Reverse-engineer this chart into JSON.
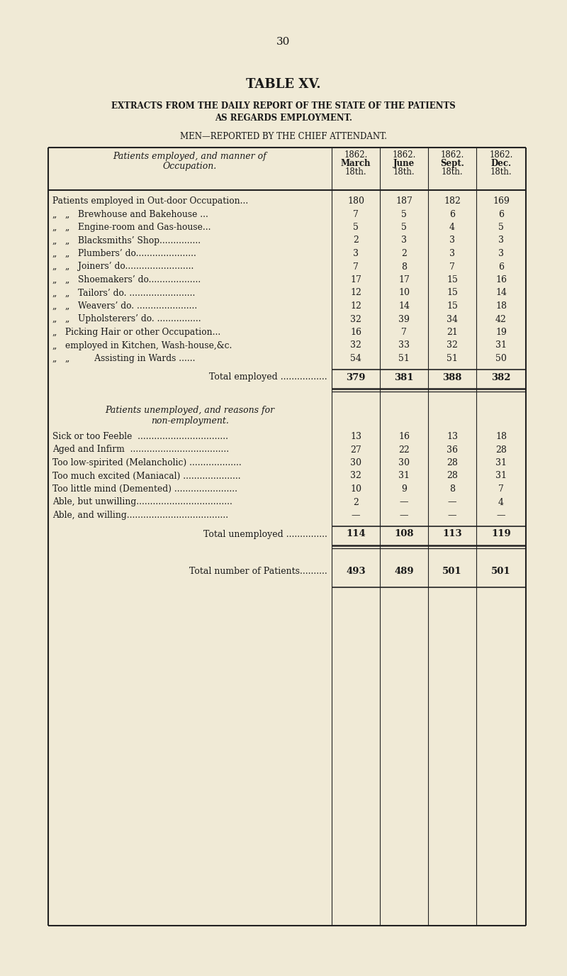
{
  "page_number": "30",
  "title": "TABLE XV.",
  "subtitle1": "EXTRACTS FROM THE DAILY REPORT OF THE STATE OF THE PATIENTS",
  "subtitle2": "AS REGARDS EMPLOYMENT.",
  "subtitle3": "MEN—REPORTED BY THE CHIEF ATTENDANT.",
  "col_headers_line1": [
    "1862.",
    "1862.",
    "1862.",
    "1862."
  ],
  "col_headers_line2": [
    "March",
    "June",
    "Sept.",
    "Dec."
  ],
  "col_headers_line3": [
    "18th.",
    "18th.",
    "18th.",
    "18th."
  ],
  "employed_rows": [
    {
      "label": "Patients employed in Out-door Occupation...",
      "prefix": "",
      "vals": [
        "180",
        "187",
        "182",
        "169"
      ]
    },
    {
      "label": "Brewhouse and Bakehouse ...",
      "prefix": "„   „   ",
      "vals": [
        "7",
        "5",
        "6",
        "6"
      ]
    },
    {
      "label": "Engine-room and Gas-house...",
      "prefix": "„   „   ",
      "vals": [
        "5",
        "5",
        "4",
        "5"
      ]
    },
    {
      "label": "Blacksmiths’ Shop...............",
      "prefix": "„   „   ",
      "vals": [
        "2",
        "3",
        "3",
        "3"
      ]
    },
    {
      "label": "Plumbers’ do......................",
      "prefix": "„   „   ",
      "vals": [
        "3",
        "2",
        "3",
        "3"
      ]
    },
    {
      "label": "Joiners’ do.........................",
      "prefix": "„   „   ",
      "vals": [
        "7",
        "8",
        "7",
        "6"
      ]
    },
    {
      "label": "Shoemakers’ do...................",
      "prefix": "„   „   ",
      "vals": [
        "17",
        "17",
        "15",
        "16"
      ]
    },
    {
      "label": "Tailors’ do. ........................",
      "prefix": "„   „   ",
      "vals": [
        "12",
        "10",
        "15",
        "14"
      ]
    },
    {
      "label": "Weavers’ do. ......................",
      "prefix": "„   „   ",
      "vals": [
        "12",
        "14",
        "15",
        "18"
      ]
    },
    {
      "label": "Upholsterers’ do. ................",
      "prefix": "„   „   ",
      "vals": [
        "32",
        "39",
        "34",
        "42"
      ]
    },
    {
      "label": "Picking Hair or other Occupation...",
      "prefix": "„   ",
      "vals": [
        "16",
        "7",
        "21",
        "19"
      ]
    },
    {
      "label": "employed in Kitchen, Wash-house,&c.",
      "prefix": "„   ",
      "vals": [
        "32",
        "33",
        "32",
        "31"
      ]
    },
    {
      "label": "Assisting in Wards ......",
      "prefix": "„   „         ",
      "vals": [
        "54",
        "51",
        "51",
        "50"
      ]
    }
  ],
  "total_employed": {
    "label": "Total employed .................",
    "vals": [
      "379",
      "381",
      "388",
      "382"
    ]
  },
  "unemployed_rows": [
    {
      "label": "Sick or too Feeble  .................................",
      "vals": [
        "13",
        "16",
        "13",
        "18"
      ]
    },
    {
      "label": "Aged and Infirm  ....................................",
      "vals": [
        "27",
        "22",
        "36",
        "28"
      ]
    },
    {
      "label": "Too low-spirited (Melancholic) ...................",
      "vals": [
        "30",
        "30",
        "28",
        "31"
      ]
    },
    {
      "label": "Too much excited (Maniacal) .....................",
      "vals": [
        "32",
        "31",
        "28",
        "31"
      ]
    },
    {
      "label": "Too little mind (Demented) .......................",
      "vals": [
        "10",
        "9",
        "8",
        "7"
      ]
    },
    {
      "label": "Able, but unwilling...................................",
      "vals": [
        "2",
        "—",
        "—",
        "4"
      ]
    },
    {
      "label": "Able, and willing.....................................",
      "vals": [
        "—",
        "—",
        "—",
        "—"
      ]
    }
  ],
  "total_unemployed": {
    "label": "Total unemployed ...............",
    "vals": [
      "114",
      "108",
      "113",
      "119"
    ]
  },
  "total_patients": {
    "label": "Total number of Patients..........",
    "vals": [
      "493",
      "489",
      "501",
      "501"
    ]
  },
  "bg_color": "#f0ead6",
  "text_color": "#1a1a1a",
  "border_color": "#222222"
}
